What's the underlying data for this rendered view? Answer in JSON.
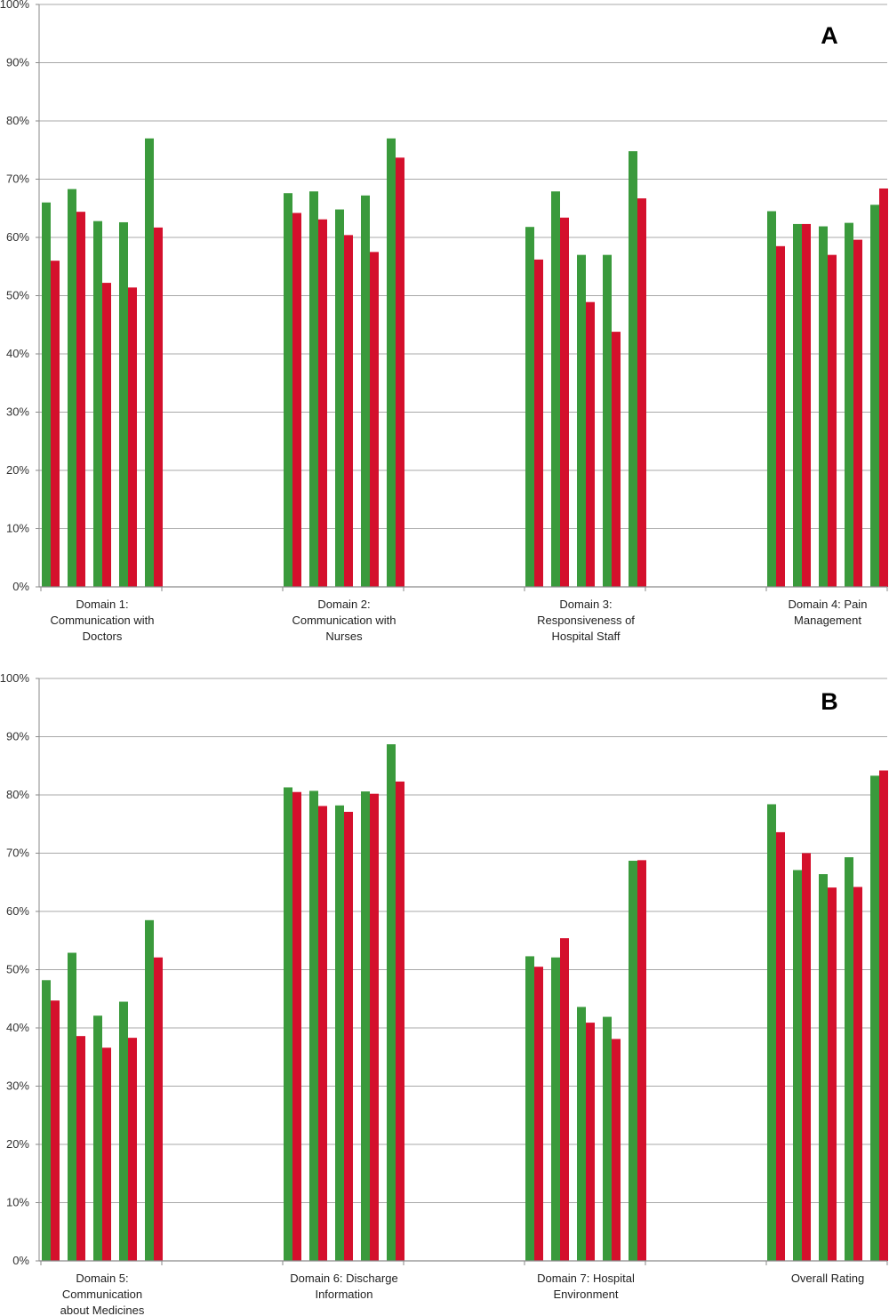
{
  "chart_data": [
    {
      "type": "bar",
      "panel_label": "A",
      "ylim": [
        0,
        100
      ],
      "y_ticks": [
        "0%",
        "10%",
        "20%",
        "30%",
        "40%",
        "50%",
        "60%",
        "70%",
        "80%",
        "90%",
        "100%"
      ],
      "grid": true,
      "groups": [
        {
          "label": [
            "Domain 1:",
            "Communication with",
            "Doctors"
          ],
          "pairs": [
            [
              66,
              56
            ],
            [
              68.3,
              64.4
            ],
            [
              62.8,
              52.2
            ],
            [
              62.6,
              51.4
            ],
            [
              77,
              61.7
            ]
          ]
        },
        {
          "label": [
            "Domain 2:",
            "Communication with",
            "Nurses"
          ],
          "pairs": [
            [
              67.6,
              64.2
            ],
            [
              67.9,
              63.1
            ],
            [
              64.8,
              60.4
            ],
            [
              67.2,
              57.5
            ],
            [
              77,
              73.7
            ]
          ]
        },
        {
          "label": [
            "Domain 3:",
            "Responsiveness of",
            "Hospital Staff"
          ],
          "pairs": [
            [
              61.8,
              56.2
            ],
            [
              67.9,
              63.4
            ],
            [
              57,
              48.9
            ],
            [
              57,
              43.8
            ],
            [
              74.8,
              66.7
            ]
          ]
        },
        {
          "label": [
            "Domain 4: Pain",
            "Management"
          ],
          "pairs": [
            [
              64.5,
              58.5
            ],
            [
              62.3,
              62.3
            ],
            [
              61.9,
              57
            ],
            [
              62.5,
              59.6
            ],
            [
              65.6,
              68.4
            ]
          ]
        }
      ]
    },
    {
      "type": "bar",
      "panel_label": "B",
      "ylim": [
        0,
        100
      ],
      "y_ticks": [
        "0%",
        "10%",
        "20%",
        "30%",
        "40%",
        "50%",
        "60%",
        "70%",
        "80%",
        "90%",
        "100%"
      ],
      "grid": true,
      "groups": [
        {
          "label": [
            "Domain 5:",
            "Communication",
            "about Medicines"
          ],
          "pairs": [
            [
              48.2,
              44.7
            ],
            [
              52.9,
              38.6
            ],
            [
              42.1,
              36.6
            ],
            [
              44.5,
              38.3
            ],
            [
              58.5,
              52.1
            ]
          ]
        },
        {
          "label": [
            "Domain 6: Discharge",
            "Information"
          ],
          "pairs": [
            [
              81.3,
              80.5
            ],
            [
              80.7,
              78.1
            ],
            [
              78.2,
              77.1
            ],
            [
              80.6,
              80.2
            ],
            [
              88.7,
              82.3
            ]
          ]
        },
        {
          "label": [
            "Domain 7: Hospital",
            "Environment"
          ],
          "pairs": [
            [
              52.3,
              50.5
            ],
            [
              52.1,
              55.4
            ],
            [
              43.6,
              40.9
            ],
            [
              41.9,
              38.1
            ],
            [
              68.7,
              68.8
            ]
          ]
        },
        {
          "label": [
            "Overall Rating"
          ],
          "pairs": [
            [
              78.4,
              73.6
            ],
            [
              67.1,
              70
            ],
            [
              66.4,
              64.1
            ],
            [
              69.3,
              64.2
            ],
            [
              83.3,
              84.2
            ]
          ]
        }
      ]
    }
  ],
  "colors": {
    "green": "#3a9a3c",
    "red": "#d4102c",
    "grid": "#a8a8a8",
    "axis": "#8a8a8a"
  }
}
